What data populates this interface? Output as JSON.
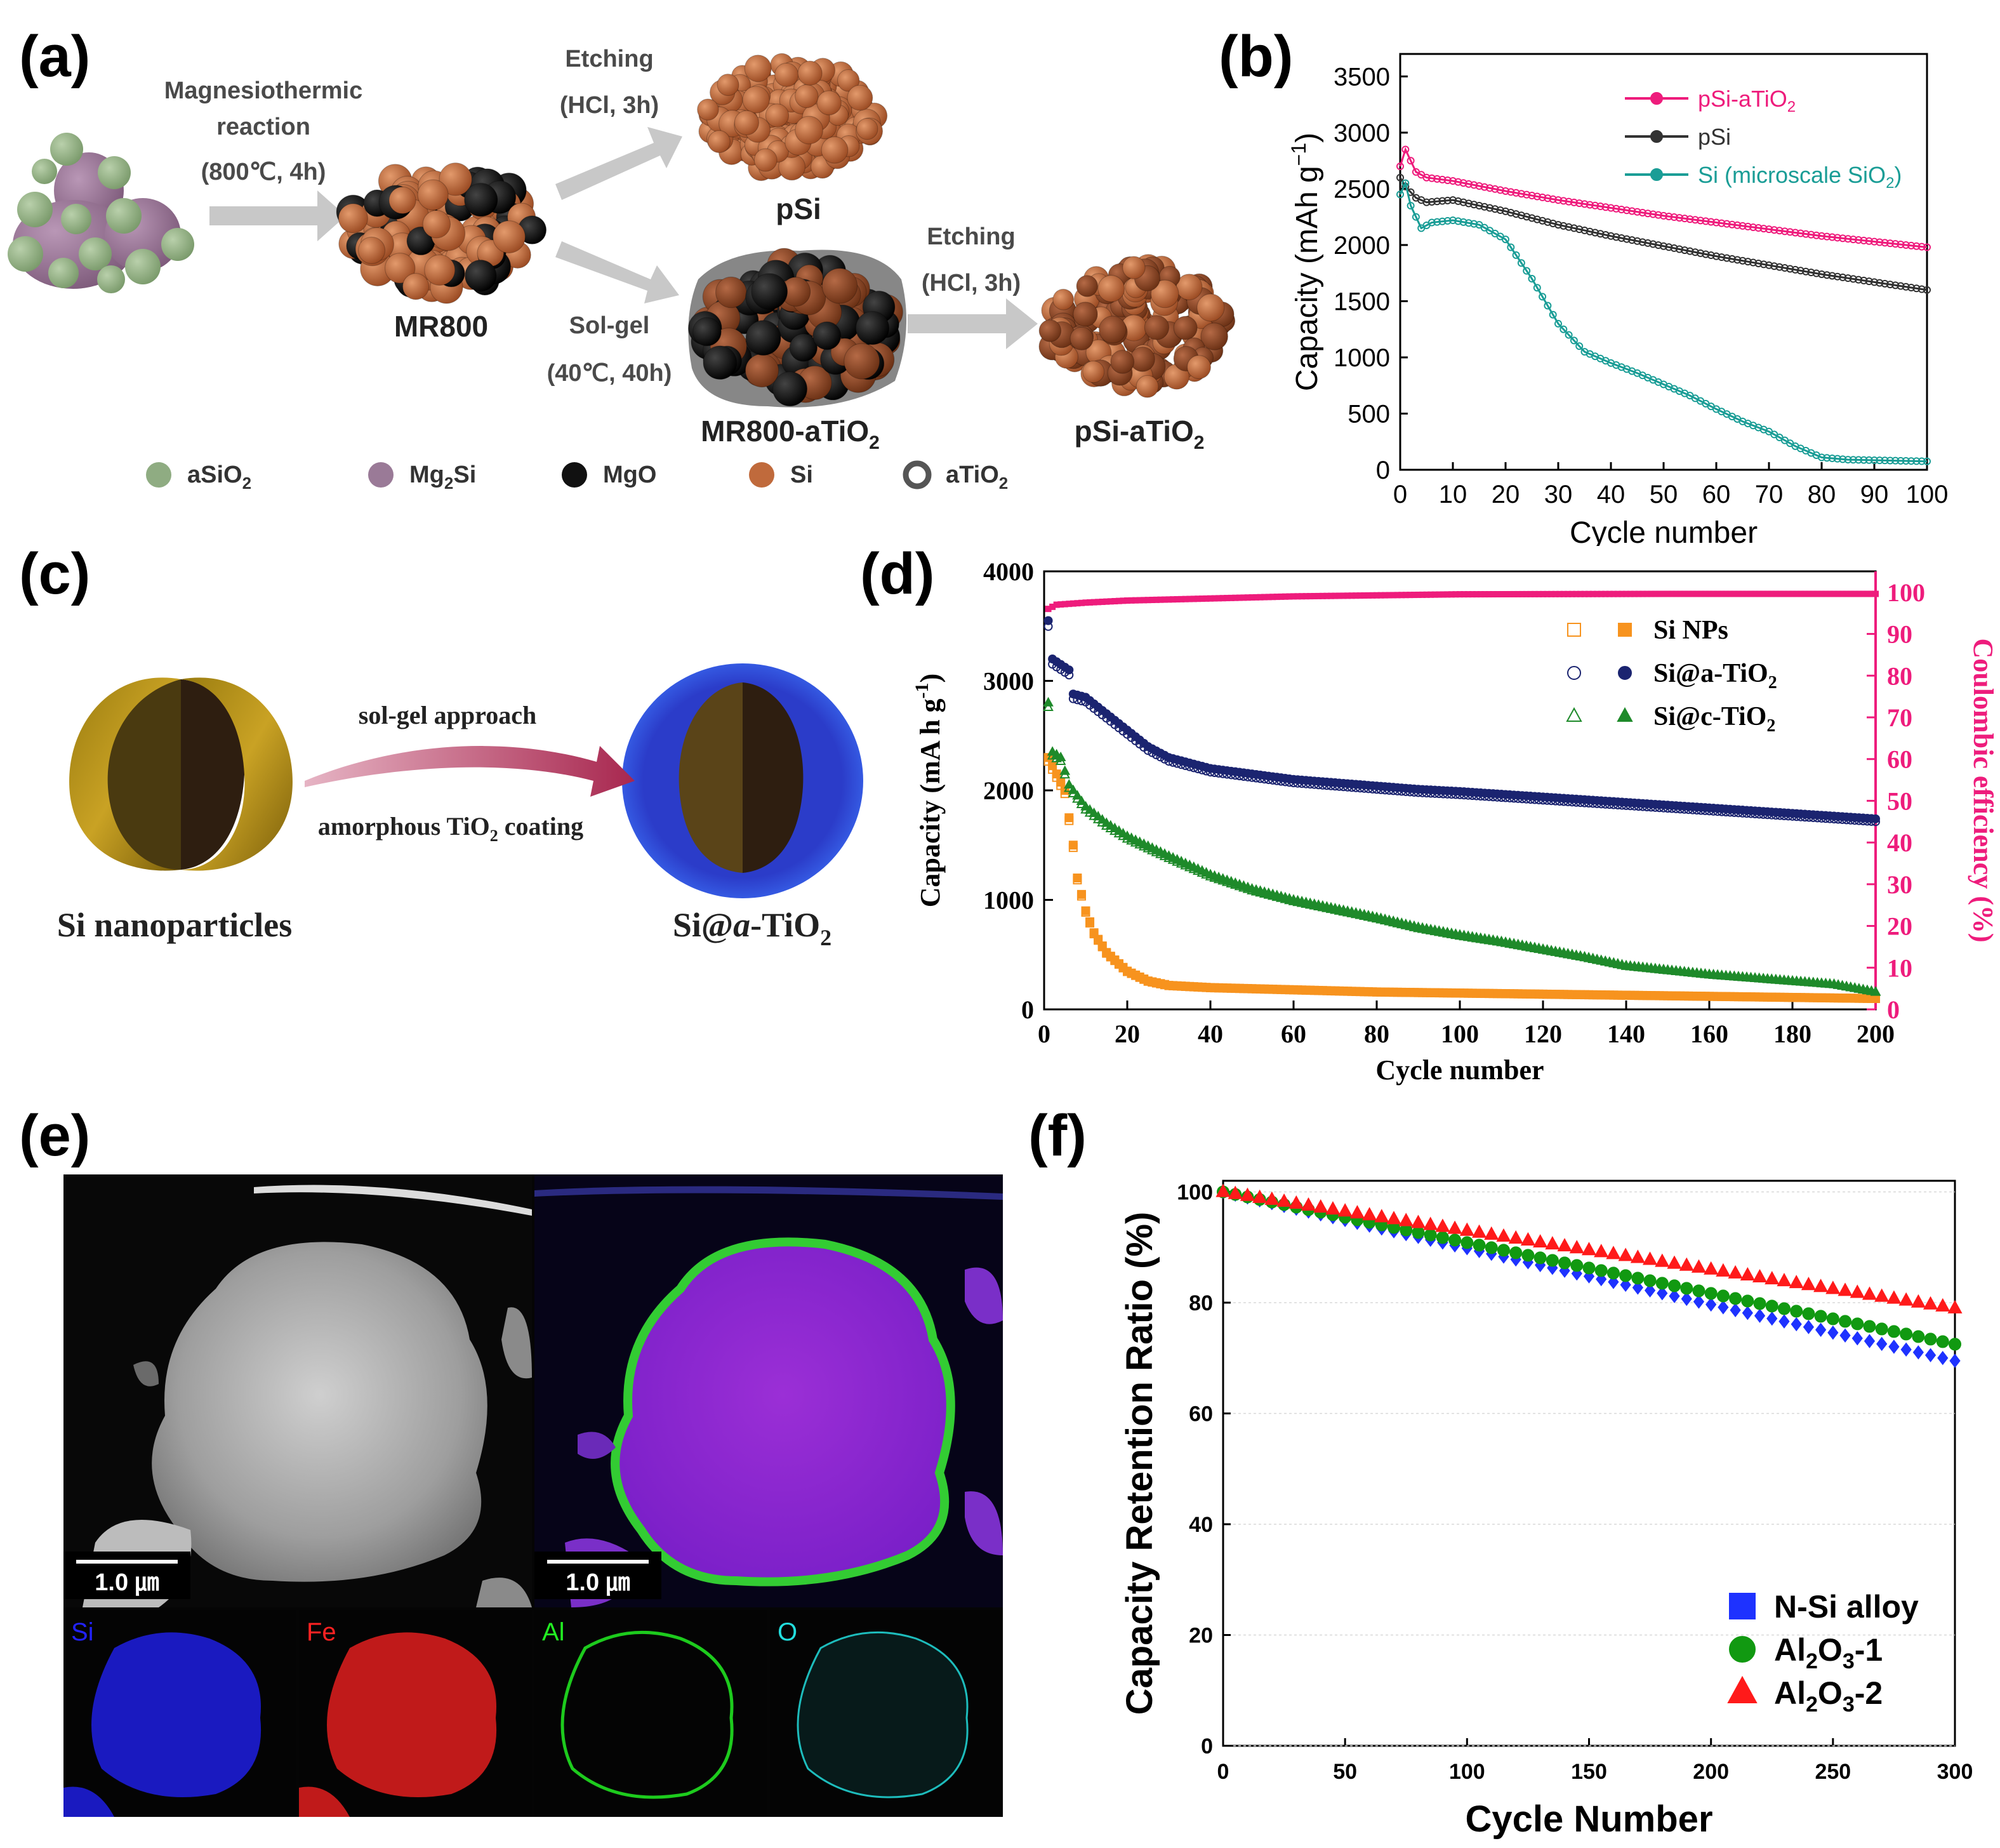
{
  "panel_labels": [
    "(a)",
    "(b)",
    "(c)",
    "(d)",
    "(e)",
    "(f)"
  ],
  "colors": {
    "aSiO2": "#8fac82",
    "Mg2Si": "#9a7a97",
    "MgO": "#111111",
    "Si": "#c06a3c",
    "aTiO2": "#555555",
    "arrow": "#c8c8c8",
    "text_grey": "#4a4a4a",
    "pink": "#ee1c7c",
    "black_series": "#333333",
    "teal": "#1a9d96",
    "orange": "#f7931e",
    "navy": "#1b2470",
    "green": "#1e8a2a",
    "blue": "#1e32ff",
    "green_f": "#119911",
    "red": "#ff1a1a",
    "c_arrow": "#c0566f"
  },
  "panel_a": {
    "step1_lines": [
      "Magnesiothermic",
      "reaction",
      "(800℃, 4h)"
    ],
    "etch1_lines": [
      "Etching",
      "(HCl, 3h)"
    ],
    "solgel_lines": [
      "Sol-gel",
      "(40℃, 40h)"
    ],
    "etch2_lines": [
      "Etching",
      "(HCl, 3h)"
    ],
    "labels": {
      "mr800": "MR800",
      "psi": "pSi",
      "mr800_ti": "MR800-aTiO",
      "psi_ti": "pSi-aTiO",
      "sub2": "2"
    },
    "legend": [
      {
        "name": "aSiO",
        "sub": "2",
        "color": "#8fac82",
        "shape": "dot"
      },
      {
        "name": "Mg",
        "sub": "2",
        "suffix": "Si",
        "color": "#9a7a97",
        "shape": "dot"
      },
      {
        "name": "MgO",
        "sub": "",
        "color": "#111111",
        "shape": "dot"
      },
      {
        "name": "Si",
        "sub": "",
        "color": "#c06a3c",
        "shape": "dot"
      },
      {
        "name": "aTiO",
        "sub": "2",
        "color": "#555555",
        "shape": "ring"
      }
    ]
  },
  "panel_c": {
    "left_caption": "Si nanoparticles",
    "right_caption_pre": "Si@",
    "right_caption_italic": "a",
    "right_caption_post": "-TiO",
    "right_caption_sub": "2",
    "arrow_top": "sol-gel approach",
    "arrow_bottom_pre": "amorphous TiO",
    "arrow_bottom_sub": "2",
    "arrow_bottom_post": " coating"
  },
  "panel_e": {
    "scale_bar": "1.0 ㎛",
    "maps": [
      "Si",
      "Fe",
      "Al",
      "O"
    ],
    "map_colors": [
      "#2222ff",
      "#ff2222",
      "#22ee22",
      "#22dddd"
    ]
  },
  "chart_data": [
    {
      "id": "b",
      "type": "line",
      "xlabel": "Cycle number",
      "ylabel": "Capacity (mAh g",
      "ylabel_sup": "−1",
      "ylabel_close": ")",
      "xlim": [
        0,
        100
      ],
      "ylim": [
        0,
        3700
      ],
      "xticks": [
        0,
        10,
        20,
        30,
        40,
        50,
        60,
        70,
        80,
        90,
        100
      ],
      "yticks": [
        0,
        500,
        1000,
        1500,
        2000,
        2500,
        3000,
        3500
      ],
      "series": [
        {
          "name": "pSi-aTiO",
          "sub": "2",
          "suffix": "",
          "color": "#ee1c7c",
          "points": [
            [
              0,
              2700
            ],
            [
              1,
              2850
            ],
            [
              3,
              2650
            ],
            [
              5,
              2600
            ],
            [
              10,
              2570
            ],
            [
              20,
              2480
            ],
            [
              30,
              2400
            ],
            [
              40,
              2330
            ],
            [
              50,
              2260
            ],
            [
              60,
              2200
            ],
            [
              70,
              2140
            ],
            [
              80,
              2080
            ],
            [
              90,
              2030
            ],
            [
              100,
              1980
            ]
          ]
        },
        {
          "name": "pSi",
          "sub": "",
          "suffix": "",
          "color": "#333333",
          "points": [
            [
              0,
              2600
            ],
            [
              1,
              2520
            ],
            [
              3,
              2420
            ],
            [
              5,
              2380
            ],
            [
              10,
              2400
            ],
            [
              20,
              2300
            ],
            [
              30,
              2180
            ],
            [
              40,
              2080
            ],
            [
              50,
              1990
            ],
            [
              60,
              1900
            ],
            [
              70,
              1820
            ],
            [
              80,
              1740
            ],
            [
              90,
              1670
            ],
            [
              100,
              1600
            ]
          ]
        },
        {
          "name": "Si (microscale SiO",
          "sub": "2",
          "suffix": ")",
          "color": "#1a9d96",
          "points": [
            [
              0,
              2450
            ],
            [
              1,
              2550
            ],
            [
              2,
              2350
            ],
            [
              4,
              2150
            ],
            [
              6,
              2200
            ],
            [
              10,
              2220
            ],
            [
              15,
              2180
            ],
            [
              20,
              2050
            ],
            [
              25,
              1700
            ],
            [
              30,
              1300
            ],
            [
              35,
              1050
            ],
            [
              40,
              950
            ],
            [
              45,
              860
            ],
            [
              50,
              760
            ],
            [
              55,
              660
            ],
            [
              60,
              540
            ],
            [
              65,
              430
            ],
            [
              70,
              340
            ],
            [
              75,
              210
            ],
            [
              80,
              110
            ],
            [
              85,
              90
            ],
            [
              90,
              85
            ],
            [
              95,
              80
            ],
            [
              100,
              75
            ]
          ]
        }
      ]
    },
    {
      "id": "d",
      "type": "scatter",
      "xlabel": "Cycle number",
      "ylabel": "Capacity (mA h g",
      "ylabel_sup": "-1",
      "ylabel_close": ")",
      "y2label": "Coulombic efficiency (%)",
      "xlim": [
        0,
        200
      ],
      "ylim": [
        0,
        4000
      ],
      "y2lim": [
        0,
        105
      ],
      "xticks": [
        0,
        20,
        40,
        60,
        80,
        100,
        120,
        140,
        160,
        180,
        200
      ],
      "yticks": [
        0,
        1000,
        2000,
        3000,
        4000
      ],
      "y2ticks": [
        0,
        10,
        20,
        30,
        40,
        50,
        60,
        70,
        80,
        90,
        100
      ],
      "series": [
        {
          "name": "Si NPs",
          "sub": "",
          "color": "#f7931e",
          "marker": "square",
          "points": [
            [
              1,
              2300
            ],
            [
              3,
              2150
            ],
            [
              5,
              2000
            ],
            [
              7,
              1500
            ],
            [
              8,
              1200
            ],
            [
              10,
              900
            ],
            [
              12,
              700
            ],
            [
              15,
              520
            ],
            [
              20,
              350
            ],
            [
              25,
              260
            ],
            [
              30,
              220
            ],
            [
              40,
              200
            ],
            [
              60,
              180
            ],
            [
              80,
              160
            ],
            [
              100,
              150
            ],
            [
              120,
              140
            ],
            [
              140,
              130
            ],
            [
              160,
              120
            ],
            [
              180,
              110
            ],
            [
              200,
              100
            ]
          ]
        },
        {
          "name": "Si@a-TiO",
          "sub": "2",
          "color": "#1b2470",
          "marker": "circle",
          "points": [
            [
              1,
              3550
            ],
            [
              2,
              3200
            ],
            [
              4,
              3150
            ],
            [
              6,
              3100
            ],
            [
              7,
              2880
            ],
            [
              10,
              2850
            ],
            [
              15,
              2700
            ],
            [
              20,
              2550
            ],
            [
              25,
              2400
            ],
            [
              30,
              2300
            ],
            [
              40,
              2200
            ],
            [
              50,
              2150
            ],
            [
              60,
              2100
            ],
            [
              70,
              2070
            ],
            [
              80,
              2040
            ],
            [
              90,
              2010
            ],
            [
              100,
              1990
            ],
            [
              120,
              1940
            ],
            [
              140,
              1890
            ],
            [
              160,
              1840
            ],
            [
              180,
              1790
            ],
            [
              200,
              1740
            ]
          ]
        },
        {
          "name": "Si@c-TiO",
          "sub": "2",
          "color": "#1e8a2a",
          "marker": "triangle",
          "points": [
            [
              1,
              2800
            ],
            [
              2,
              2350
            ],
            [
              4,
              2300
            ],
            [
              6,
              2050
            ],
            [
              8,
              1950
            ],
            [
              10,
              1850
            ],
            [
              15,
              1700
            ],
            [
              20,
              1580
            ],
            [
              30,
              1400
            ],
            [
              40,
              1230
            ],
            [
              50,
              1100
            ],
            [
              60,
              1000
            ],
            [
              70,
              920
            ],
            [
              80,
              840
            ],
            [
              90,
              750
            ],
            [
              100,
              680
            ],
            [
              110,
              620
            ],
            [
              120,
              550
            ],
            [
              130,
              480
            ],
            [
              140,
              400
            ],
            [
              150,
              360
            ],
            [
              160,
              320
            ],
            [
              170,
              290
            ],
            [
              180,
              260
            ],
            [
              190,
              230
            ],
            [
              200,
              160
            ]
          ]
        },
        {
          "name": "Coulombic efficiency",
          "axis": "y2",
          "color": "#ee1c7c",
          "marker": "square",
          "points": [
            [
              1,
              96
            ],
            [
              3,
              97
            ],
            [
              10,
              97.5
            ],
            [
              20,
              98
            ],
            [
              40,
              98.5
            ],
            [
              60,
              99
            ],
            [
              100,
              99.5
            ],
            [
              150,
              99.6
            ],
            [
              200,
              99.6
            ]
          ]
        }
      ]
    },
    {
      "id": "f",
      "type": "scatter",
      "xlabel": "Cycle Number",
      "ylabel": "Capacity Retention Ratio (%)",
      "xlim": [
        0,
        300
      ],
      "ylim": [
        0,
        102
      ],
      "xticks": [
        0,
        50,
        100,
        150,
        200,
        250,
        300
      ],
      "yticks": [
        0,
        20,
        40,
        60,
        80,
        100
      ],
      "series": [
        {
          "name": "N-Si alloy",
          "sub": "",
          "suffix": "",
          "color": "#1e32ff",
          "marker": "square",
          "points": [
            [
              0,
              100
            ],
            [
              300,
              69.5
            ]
          ]
        },
        {
          "name": "Al",
          "sub": "2",
          "mid": "O",
          "sub2": "3",
          "suffix": "-1",
          "color": "#119911",
          "marker": "circle",
          "points": [
            [
              0,
              100
            ],
            [
              300,
              72.5
            ]
          ]
        },
        {
          "name": "Al",
          "sub": "2",
          "mid": "O",
          "sub2": "3",
          "suffix": "-2",
          "color": "#ff1a1a",
          "marker": "triangle",
          "points": [
            [
              0,
              100
            ],
            [
              300,
              79
            ]
          ]
        }
      ]
    }
  ]
}
